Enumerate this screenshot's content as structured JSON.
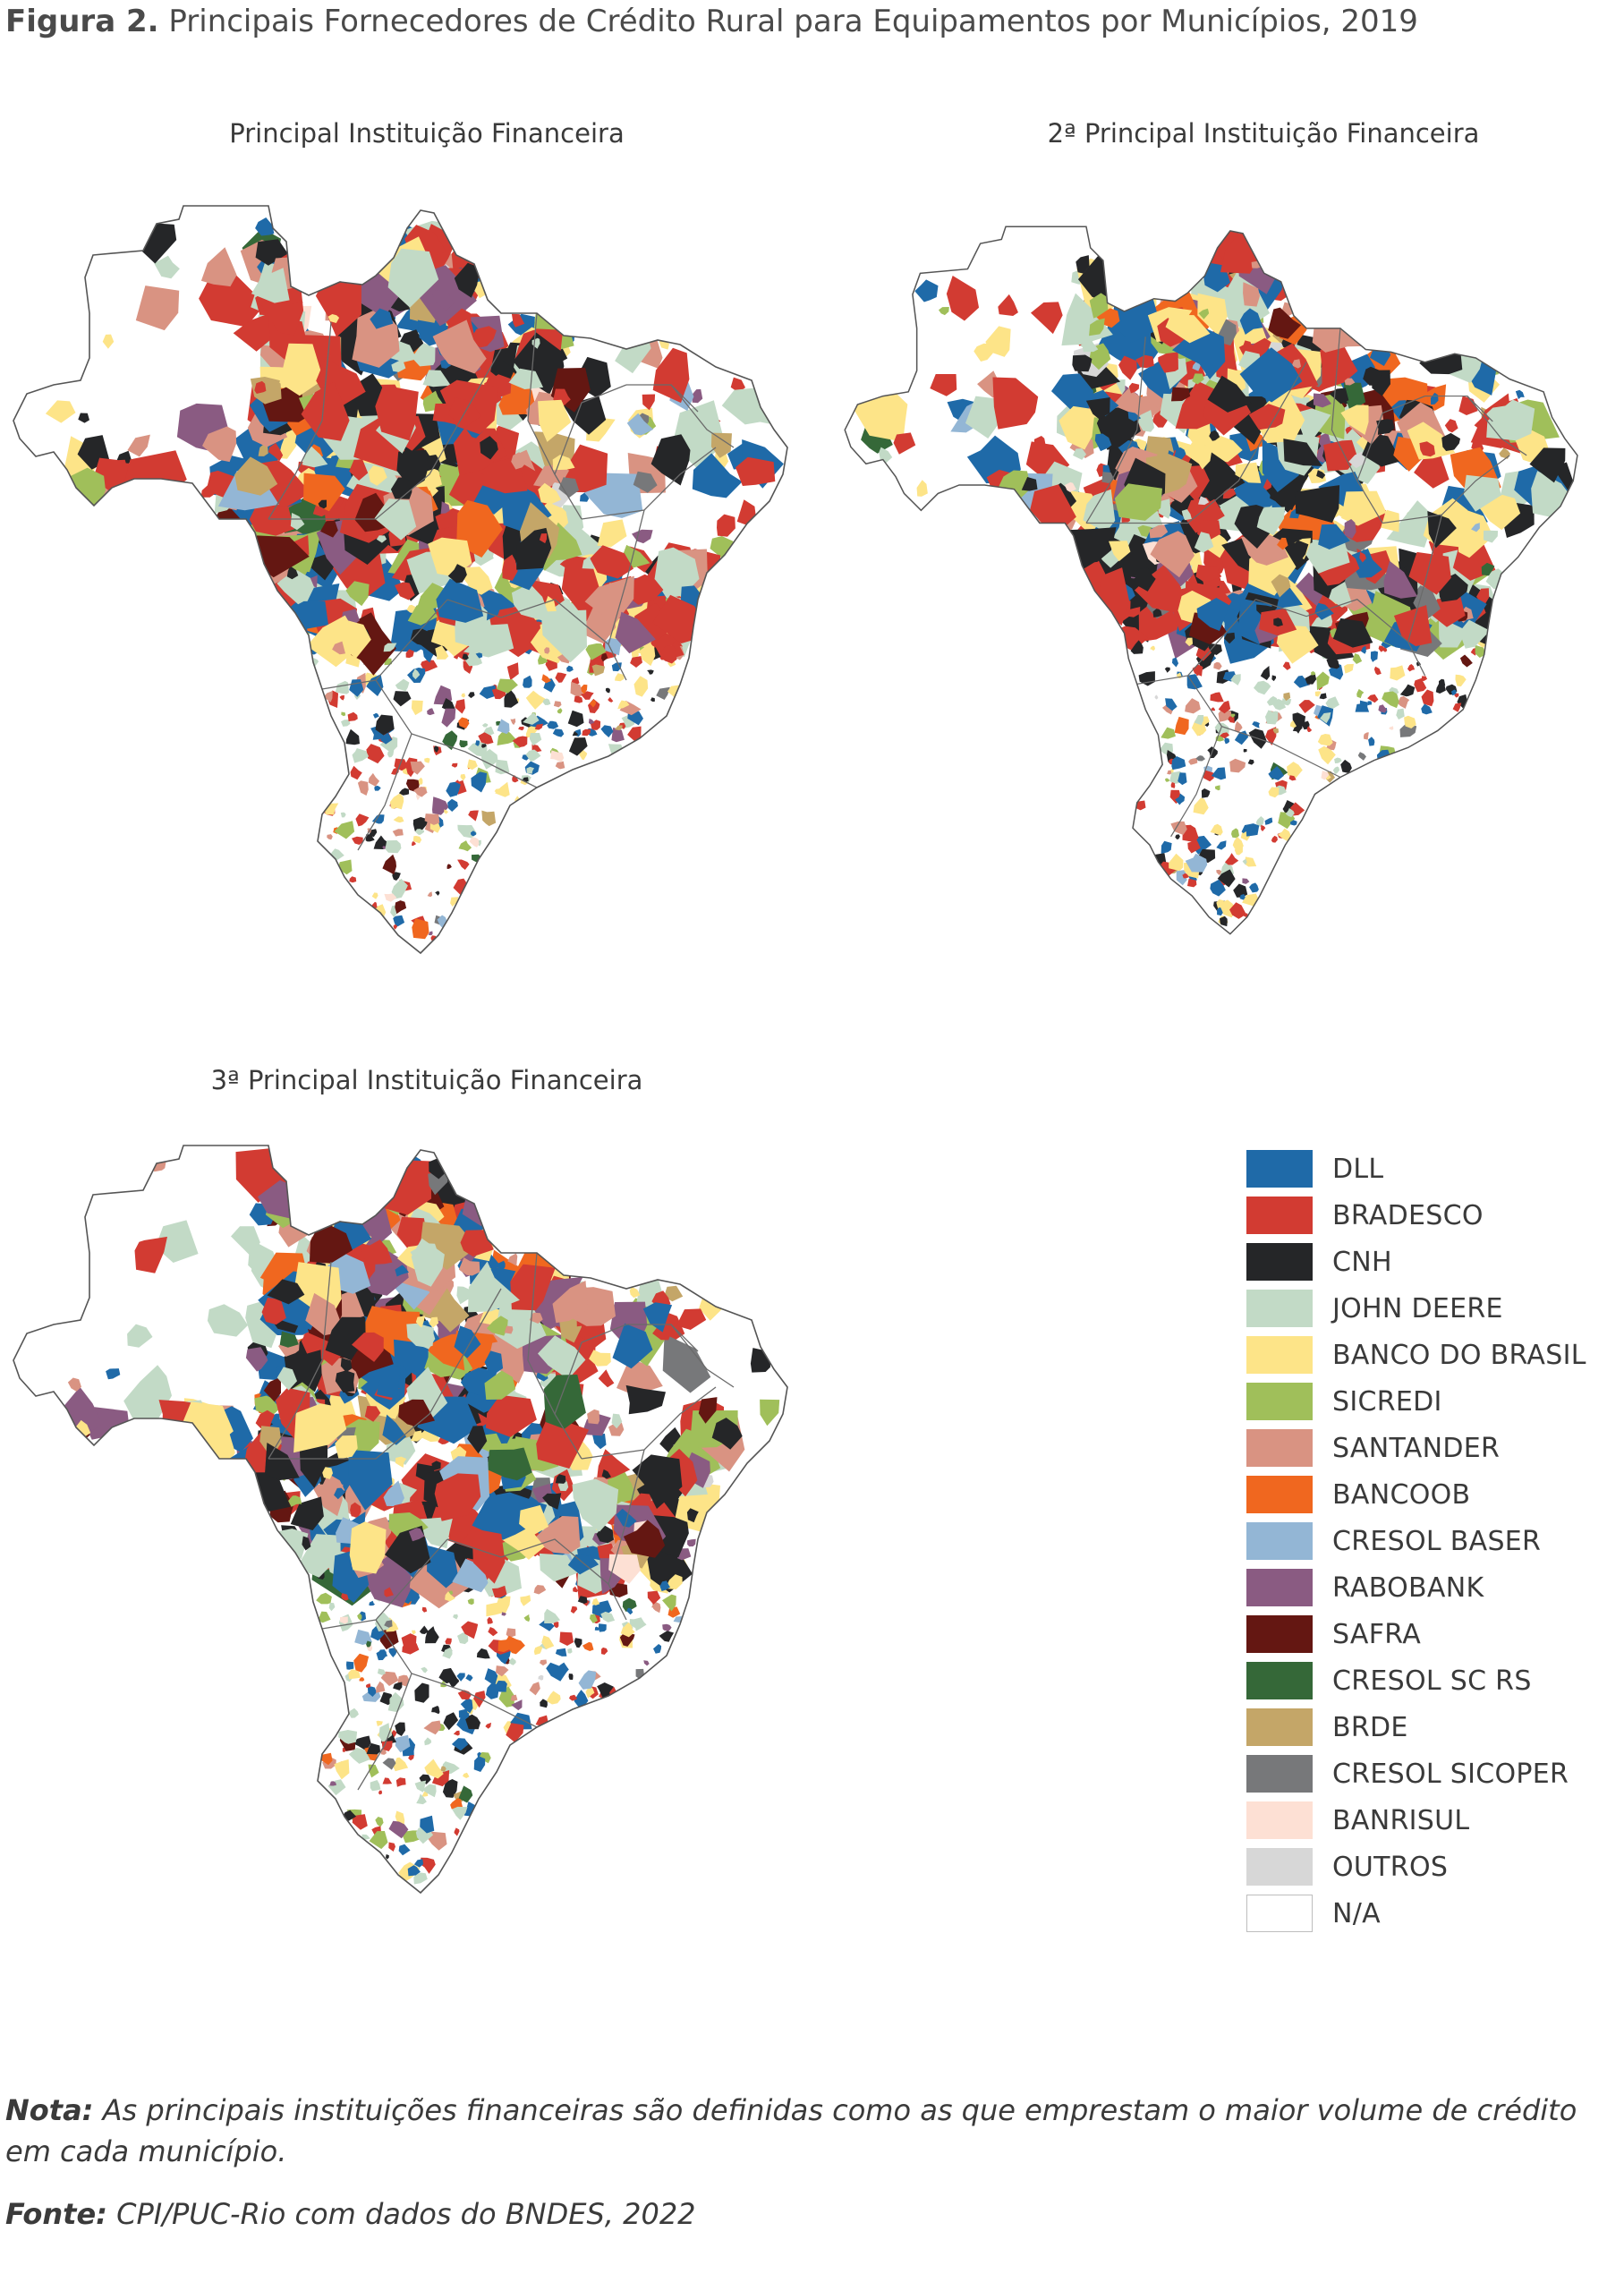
{
  "figure": {
    "label": "Figura 2.",
    "title": "Principais Fornecedores de Crédito Rural para Equipamentos por Municípios, 2019"
  },
  "panels": [
    {
      "title": "Principal Instituição Financeira"
    },
    {
      "title": "2ª Principal Instituição Financeira"
    },
    {
      "title": "3ª Principal Instituição Financeira"
    }
  ],
  "legend": [
    {
      "label": "DLL",
      "color": "#1f6aa8"
    },
    {
      "label": "BRADESCO",
      "color": "#d23b32"
    },
    {
      "label": "CNH",
      "color": "#252628"
    },
    {
      "label": "JOHN DEERE",
      "color": "#c2dac6"
    },
    {
      "label": "BANCO DO BRASIL",
      "color": "#fde488"
    },
    {
      "label": "SICREDI",
      "color": "#a0bf5a"
    },
    {
      "label": "SANTANDER",
      "color": "#d99382"
    },
    {
      "label": "BANCOOB",
      "color": "#f0671f"
    },
    {
      "label": "CRESOL BASER",
      "color": "#93b6d5"
    },
    {
      "label": "RABOBANK",
      "color": "#8a5b82"
    },
    {
      "label": "SAFRA",
      "color": "#641712"
    },
    {
      "label": "CRESOL SC RS",
      "color": "#356838"
    },
    {
      "label": "BRDE",
      "color": "#c4a668"
    },
    {
      "label": "CRESOL SICOPER",
      "color": "#77787a"
    },
    {
      "label": "BANRISUL",
      "color": "#fde0d4"
    },
    {
      "label": "OUTROS",
      "color": "#d7d7d7"
    },
    {
      "label": "N/A",
      "color": "#ffffff"
    }
  ],
  "note": {
    "label": "Nota:",
    "text": " As principais instituições financeiras são definidas como as que emprestam o maior volume de crédito em cada município."
  },
  "source": {
    "label": "Fonte:",
    "text": " CPI/PUC-Rio com dados do BNDES, 2022"
  }
}
